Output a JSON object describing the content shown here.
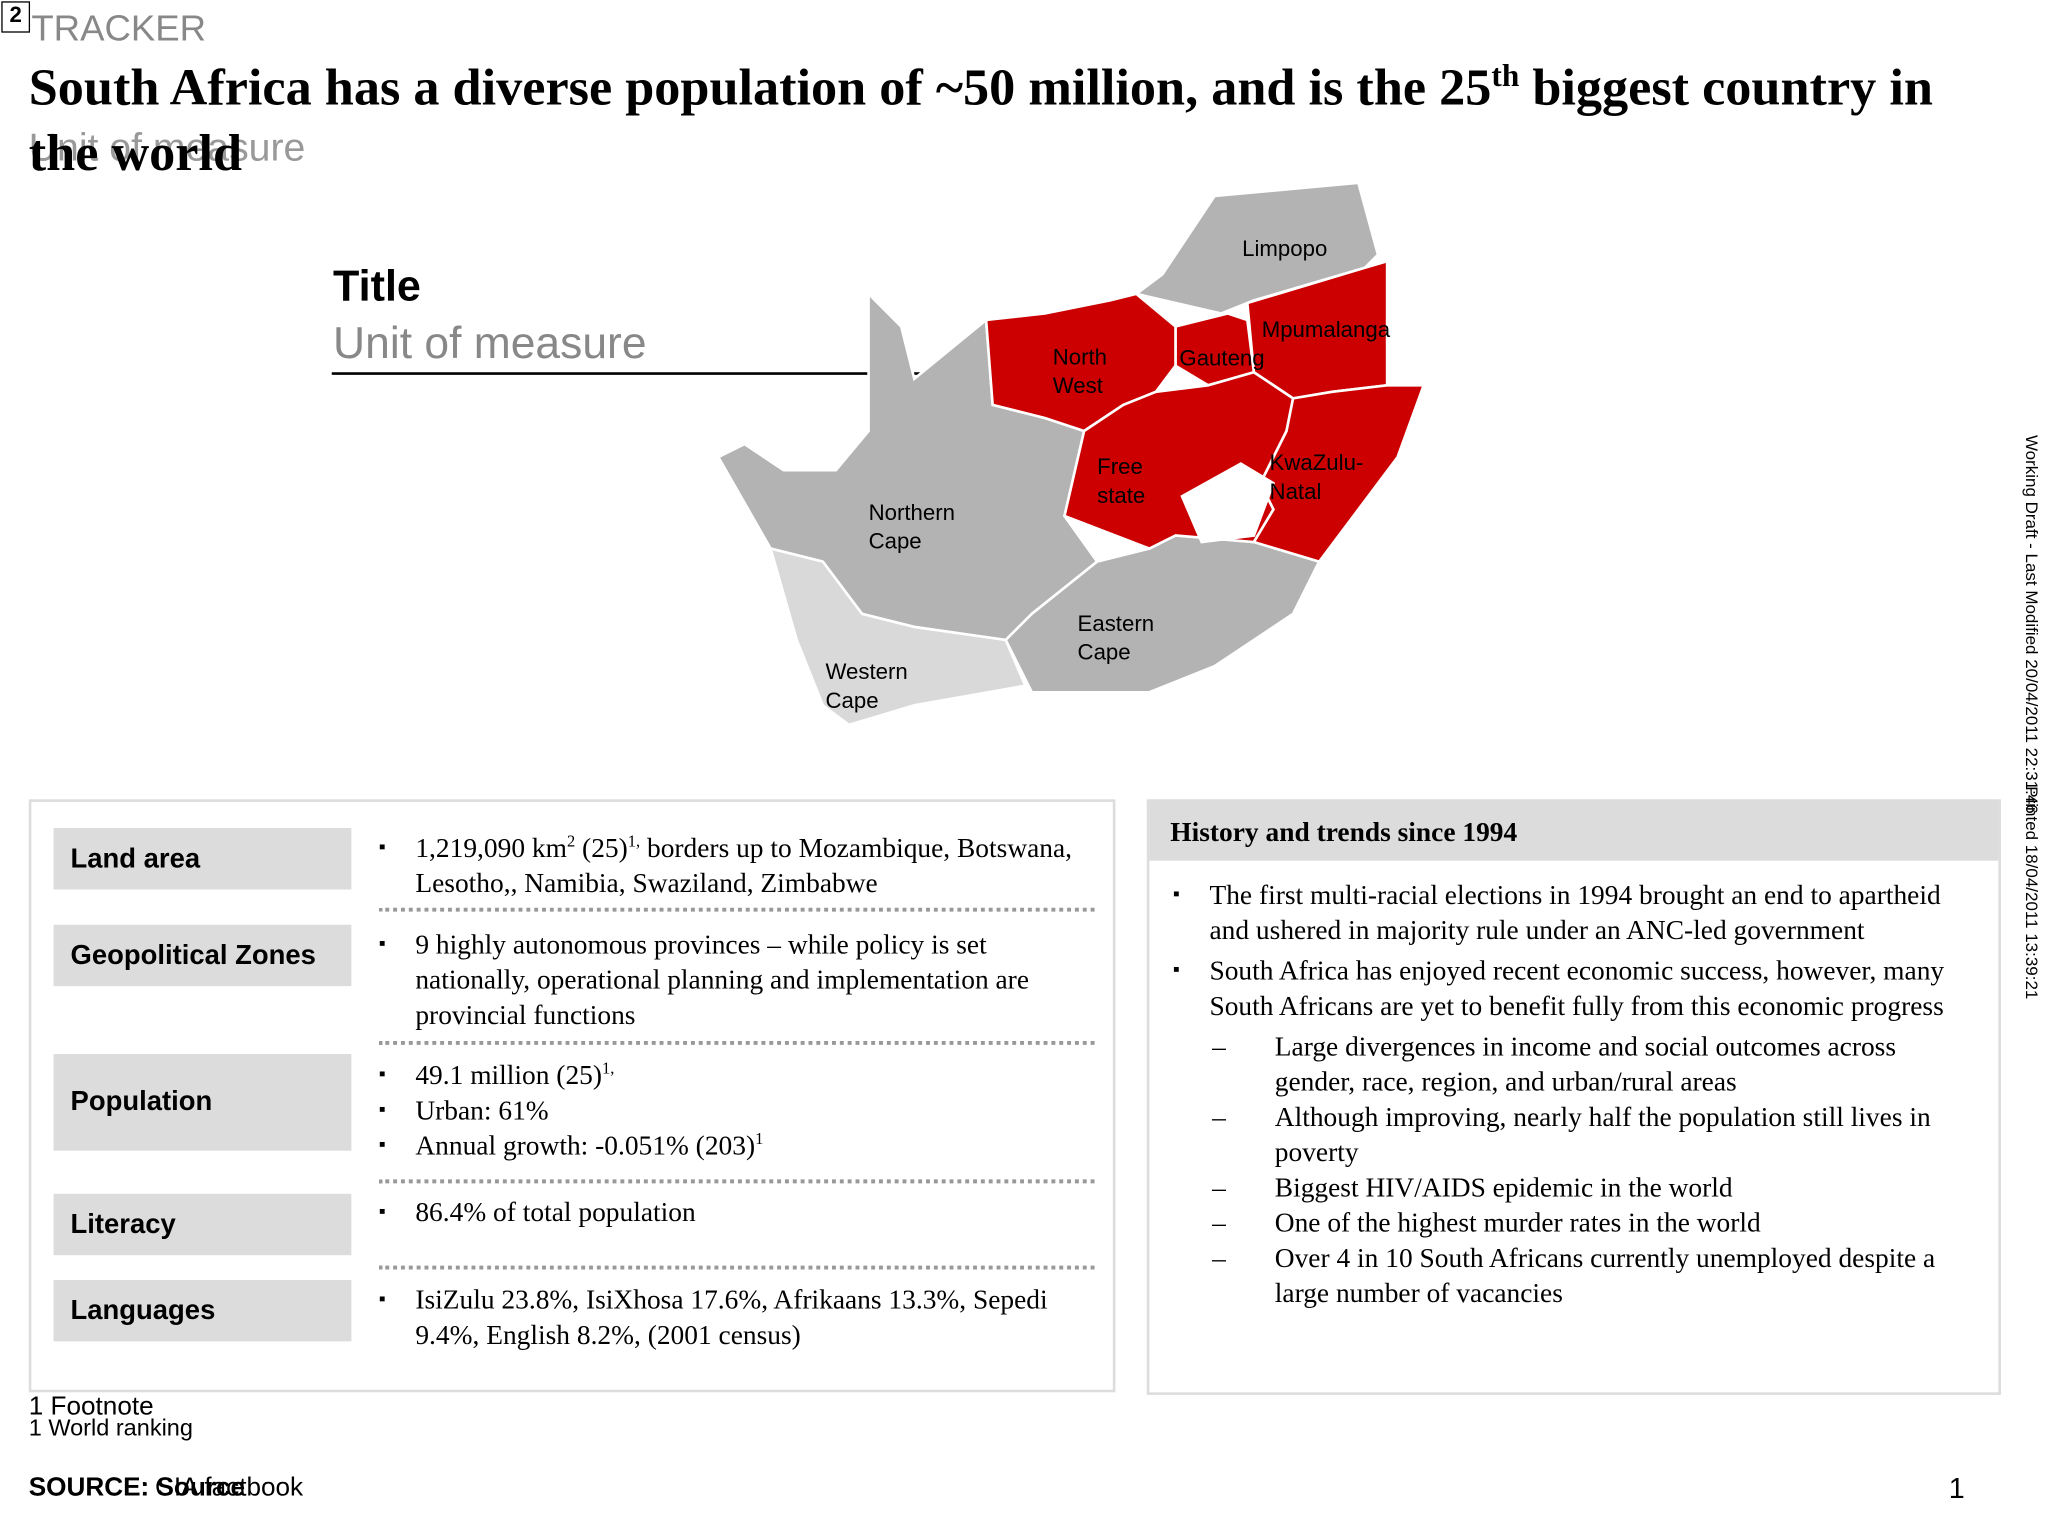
{
  "slide_number": "2",
  "tracker": "TRACKER",
  "title": {
    "before": "South Africa has a diverse population of ~50 million, and is the 25",
    "sup": "th",
    "after": " biggest country in the world"
  },
  "unit_overlay": "Unit of measure",
  "chart_placeholder": {
    "title": "Title",
    "unit": "Unit of measure"
  },
  "map": {
    "regions": [
      "Limpopo",
      "Mpumalanga",
      "Gauteng",
      "North\nWest",
      "Free\nstate",
      "KwaZulu-\nNatal",
      "Northern\nCape",
      "Eastern\nCape",
      "Western\nCape"
    ]
  },
  "facts": [
    {
      "label": "Land area",
      "bullets": [
        [
          {
            "text": "1,219,090 km"
          },
          {
            "sup": "2"
          },
          {
            "text": " (25)"
          },
          {
            "sup": "1,"
          },
          {
            "text": " borders up to Mozambique, Botswana, Lesotho,, Namibia, Swaziland, Zimbabwe"
          }
        ]
      ]
    },
    {
      "label": "Geopolitical Zones",
      "bullets": [
        [
          {
            "text": "9 highly autonomous provinces – while policy is set nationally, operational planning and implementation are provincial functions"
          }
        ]
      ]
    },
    {
      "label": "Population",
      "bullets": [
        [
          {
            "text": "49.1 million (25)"
          },
          {
            "sup": "1,"
          }
        ],
        [
          {
            "text": "Urban: 61%"
          }
        ],
        [
          {
            "text": "Annual growth: -0.051% (203)"
          },
          {
            "sup": "1"
          }
        ]
      ]
    },
    {
      "label": "Literacy",
      "bullets": [
        [
          {
            "text": "86.4% of total population"
          }
        ]
      ]
    },
    {
      "label": "Languages",
      "bullets": [
        [
          {
            "text": "IsiZulu 23.8%, IsiXhosa 17.6%, Afrikaans 13.3%, Sepedi 9.4%, English 8.2%, (2001 census)"
          }
        ]
      ]
    }
  ],
  "history": {
    "title": "History and trends since 1994",
    "bullets": [
      {
        "text": "The first multi-racial elections in 1994 brought an end to apartheid and ushered in majority rule under an ANC-led government",
        "sub": []
      },
      {
        "text": "South Africa has enjoyed recent economic success, however, many South Africans are yet to benefit fully from this economic progress",
        "sub": [
          "Large divergences in income and social outcomes across gender, race, region, and urban/rural areas",
          "Although improving, nearly half the population still lives in poverty",
          "Biggest HIV/AIDS epidemic in the world",
          "One of the highest murder rates in the world",
          "Over 4 in 10 South Africans currently unemployed despite a large number of vacancies"
        ]
      }
    ]
  },
  "footnotes": [
    "1 Footnote",
    "1 World ranking"
  ],
  "sources": [
    "SOURCE: Source",
    "SOURCE: CIA factbook"
  ],
  "side_notes": [
    "Working Draft - Last Modified 20/04/2011 22:31:46",
    "Printed 18/04/2011 13:39:21"
  ],
  "page_number": "1"
}
